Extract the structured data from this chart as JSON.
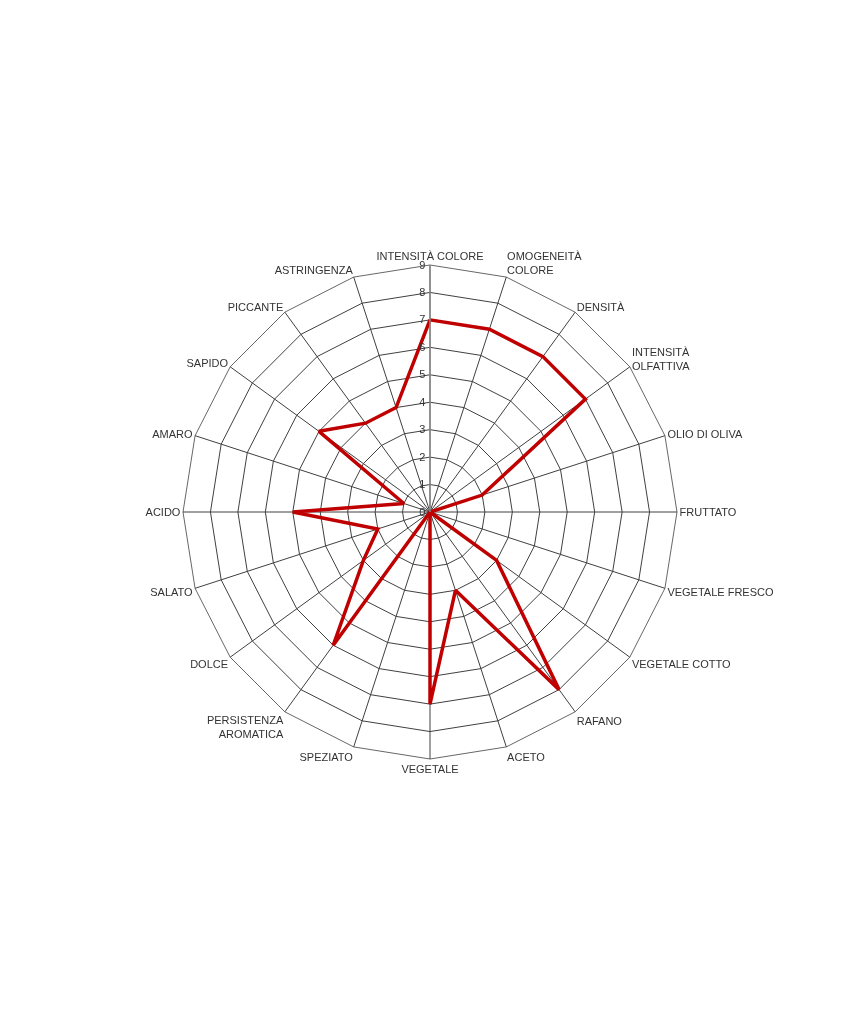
{
  "chart_data": {
    "type": "radar",
    "categories": [
      "INTENSITÀ COLORE",
      "OMOGENEITÀ COLORE",
      "DENSITÀ",
      "INTENSITÀ OLFATTIVA",
      "OLIO DI OLIVA",
      "FRUTTATO",
      "VEGETALE FRESCO",
      "VEGETALE COTTO",
      "RAFANO",
      "ACETO",
      "VEGETALE",
      "SPEZIATO",
      "PERSISTENZA AROMATICA",
      "DOLCE",
      "SALATO",
      "ACIDO",
      "AMARO",
      "SAPIDO",
      "PICCANTE",
      "ASTRINGENZA"
    ],
    "series": [
      {
        "color": "#c00000",
        "values": [
          7,
          7,
          7,
          7,
          2,
          0,
          0,
          3,
          8,
          3,
          7,
          0,
          6,
          3,
          2,
          5,
          1,
          5,
          4,
          4
        ]
      }
    ],
    "ylim": [
      0,
      9
    ],
    "yticks": [
      0,
      1,
      2,
      3,
      4,
      5,
      6,
      7,
      8,
      9
    ],
    "grid": true,
    "legend": false,
    "marker": "none",
    "line_style": "solid"
  }
}
